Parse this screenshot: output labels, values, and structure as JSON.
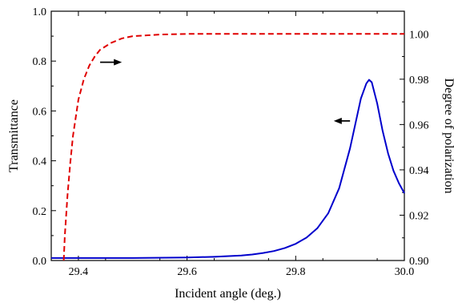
{
  "chart_data": {
    "type": "line",
    "title": "",
    "xlabel": "Incident angle (deg.)",
    "ylabel_left": "Transmittance",
    "ylabel_right": "Degree of polarization",
    "xlim": [
      29.35,
      30.0
    ],
    "ylim_left": [
      0.0,
      1.0
    ],
    "ylim_right": [
      0.9,
      1.01
    ],
    "x_ticks": [
      "29.4",
      "29.6",
      "29.8",
      "30.0"
    ],
    "x_tick_values": [
      29.4,
      29.6,
      29.8,
      30.0
    ],
    "y_left_ticks": [
      "0.0",
      "0.2",
      "0.4",
      "0.6",
      "0.8",
      "1.0"
    ],
    "y_left_tick_values": [
      0.0,
      0.2,
      0.4,
      0.6,
      0.8,
      1.0
    ],
    "y_right_ticks": [
      "0.90",
      "0.92",
      "0.94",
      "0.96",
      "0.98",
      "1.00"
    ],
    "y_right_tick_values": [
      0.9,
      0.92,
      0.94,
      0.96,
      0.98,
      1.0
    ],
    "grid": false,
    "series": [
      {
        "axis": "left",
        "color": "#0000CC",
        "style": "solid",
        "x": [
          29.35,
          29.5,
          29.6,
          29.65,
          29.7,
          29.72,
          29.74,
          29.76,
          29.78,
          29.8,
          29.82,
          29.84,
          29.86,
          29.88,
          29.9,
          29.91,
          29.92,
          29.93,
          29.935,
          29.94,
          29.95,
          29.96,
          29.97,
          29.98,
          29.99,
          30.0
        ],
        "y": [
          0.01,
          0.01,
          0.012,
          0.015,
          0.02,
          0.024,
          0.03,
          0.038,
          0.05,
          0.067,
          0.092,
          0.13,
          0.19,
          0.29,
          0.45,
          0.55,
          0.65,
          0.71,
          0.725,
          0.715,
          0.63,
          0.52,
          0.43,
          0.36,
          0.31,
          0.27
        ]
      },
      {
        "axis": "right",
        "color": "#E00000",
        "style": "dashed",
        "x": [
          29.373,
          29.375,
          29.38,
          29.385,
          29.39,
          29.4,
          29.41,
          29.42,
          29.43,
          29.44,
          29.46,
          29.48,
          29.5,
          29.55,
          29.6,
          29.7,
          29.8,
          29.9,
          30.0
        ],
        "y": [
          0.9,
          0.911,
          0.929,
          0.943,
          0.955,
          0.971,
          0.98,
          0.986,
          0.99,
          0.993,
          0.996,
          0.998,
          0.999,
          0.9997,
          1.0,
          1.0,
          1.0,
          1.0,
          1.0
        ]
      }
    ],
    "annotations": [
      {
        "type": "arrow",
        "direction": "right",
        "x": [
          29.44,
          29.48
        ],
        "y_axis": "right",
        "y": 0.9875
      },
      {
        "type": "arrow",
        "direction": "left",
        "x": [
          29.87,
          29.9
        ],
        "y_axis": "left",
        "y": 0.56
      }
    ]
  }
}
